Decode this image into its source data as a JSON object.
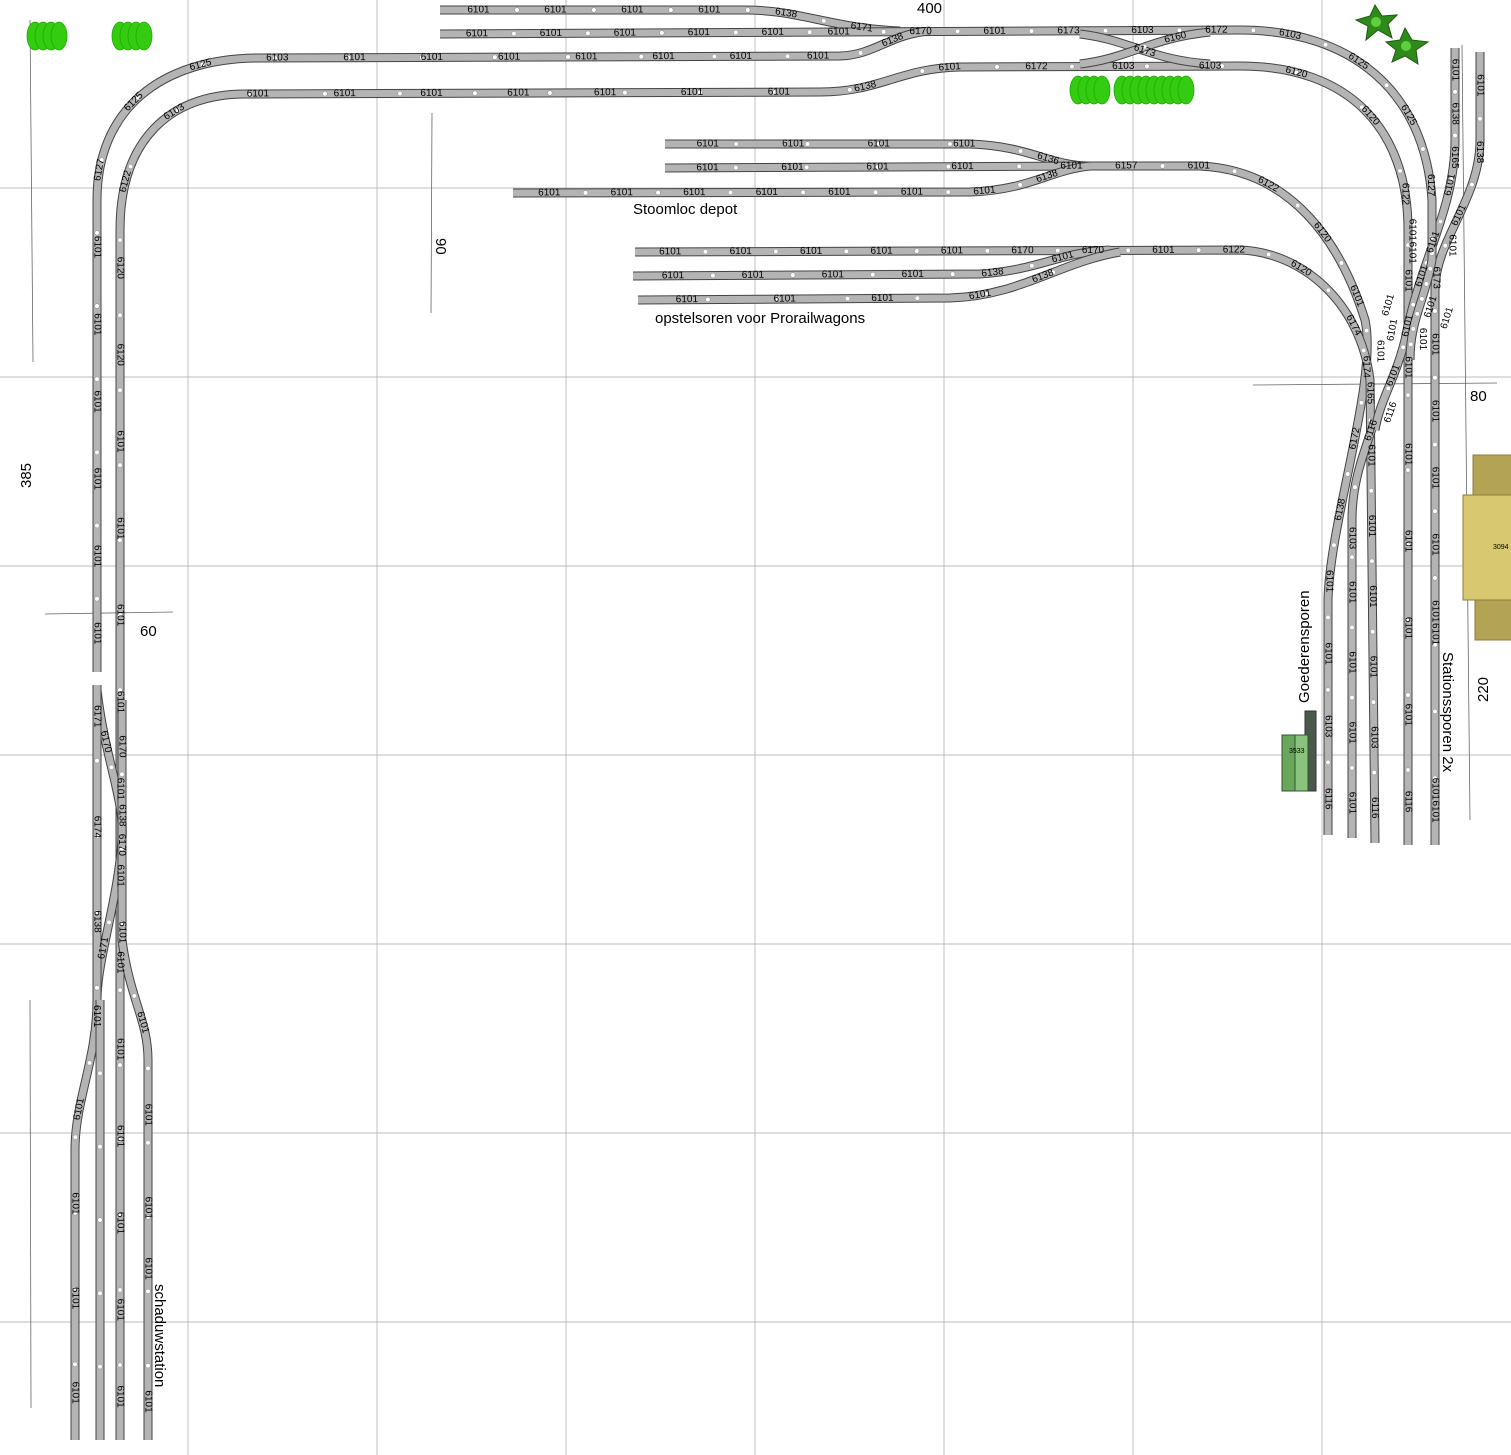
{
  "colors": {
    "track": "#b4b4b4",
    "track_edge": "#444444",
    "grid": "#a8a8a8",
    "tree": "#33cc11",
    "tree_dark": "#2e8b1a",
    "station": "#d8c870",
    "station_side": "#b3a455",
    "goods_shed": "#78b46a",
    "goods_shed_dark": "#4a5a4a"
  },
  "labels": {
    "stoomloc": "Stoomloc depot",
    "prorail": "opstelsoren voor Prorailwagons",
    "goederen": "Goederensporen",
    "station": "Stationssporen 2x",
    "schaduw": "schaduwstation"
  },
  "dimensions": {
    "d400": "400",
    "d385": "385",
    "d60": "60",
    "d90": "90",
    "d80": "80",
    "d220": "220"
  },
  "buildings": {
    "station": "3094",
    "goods_shed": "3533"
  },
  "tracks": [
    {
      "pieces": [
        "6101",
        "6101",
        "6101",
        "6101",
        "6138",
        "6171"
      ]
    },
    {
      "pieces": [
        "6101",
        "6101",
        "6101",
        "6101",
        "6101",
        "6101",
        "6170",
        "6101",
        "6173",
        "6103",
        "6172",
        "6103",
        "6125",
        "6125",
        "6127"
      ]
    },
    {
      "pieces": [
        "6101",
        "6101",
        "6101",
        "6101",
        "6101",
        "6101",
        "6127",
        "6125",
        "6125",
        "6103",
        "6101",
        "6101",
        "6101",
        "6101",
        "6101",
        "6101",
        "6101",
        "6138"
      ]
    },
    {
      "pieces": [
        "6101",
        "6101",
        "6101",
        "6101",
        "6101",
        "6101",
        "6101",
        "6101",
        "6101",
        "6101",
        "6101",
        "6101",
        "6120",
        "6120",
        "6122",
        "6103",
        "6101",
        "6101",
        "6101",
        "6101",
        "6101",
        "6101",
        "6101",
        "6138",
        "6101",
        "6172",
        "6103",
        "6103",
        "6120",
        "6120",
        "6122",
        "6101",
        "6101",
        "6101",
        "6101",
        "6101",
        "6101",
        "6116"
      ]
    },
    {
      "pieces": [
        "6173"
      ]
    },
    {
      "pieces": [
        "6160"
      ]
    },
    {
      "pieces": [
        "6101",
        "6101",
        "6101",
        "6101",
        "6136"
      ]
    },
    {
      "pieces": [
        "6101",
        "6101",
        "6101",
        "6101",
        "6101"
      ]
    },
    {
      "pieces": [
        "6101",
        "6101",
        "6101",
        "6101",
        "6101",
        "6101",
        "6101",
        "6138"
      ]
    },
    {
      "pieces": [
        "6157",
        "6101",
        "6122",
        "6120",
        "6101",
        "6174",
        "6172",
        "6138",
        "6101",
        "6101",
        "6103",
        "6116"
      ]
    },
    {
      "pieces": [
        "6101",
        "6101",
        "6101",
        "6101",
        "6101",
        "6170",
        "6170",
        "6101",
        "6122",
        "6120",
        "6174",
        "6165",
        "6101",
        "6101",
        "6101",
        "6101",
        "6103",
        "6116"
      ]
    },
    {
      "pieces": [
        "6101",
        "6101",
        "6101",
        "6101",
        "6138",
        "6101"
      ]
    },
    {
      "pieces": [
        "6101",
        "6101",
        "6101",
        "6101",
        "6138"
      ]
    },
    {
      "pieces": [
        "6101",
        "6101",
        "6101",
        "6101",
        "6103",
        "6116"
      ]
    },
    {
      "pieces": [
        "6101",
        "6101",
        "6101",
        "6101",
        "6101",
        "6101",
        "6101",
        "6101",
        "6173",
        "6101",
        "6138",
        "6101"
      ]
    },
    {
      "pieces": [
        "6101",
        "6138",
        "6165",
        "6101",
        "6101",
        "6101",
        "6101",
        "6101",
        "6116"
      ]
    },
    {
      "pieces": [
        "6101",
        "6101",
        "6101",
        "6101",
        "6101",
        "6101",
        "6101",
        "6101",
        "6101"
      ]
    },
    {
      "pieces": [
        "6170",
        "6170",
        "6171"
      ]
    },
    {
      "pieces": [
        "6171",
        "6174",
        "6138",
        "6101",
        "6101",
        "6101",
        "6101",
        "6101"
      ]
    },
    {
      "pieces": [
        "6170",
        "6138",
        "6101",
        "6101",
        "6101",
        "6101",
        "6101",
        "6101"
      ]
    }
  ]
}
